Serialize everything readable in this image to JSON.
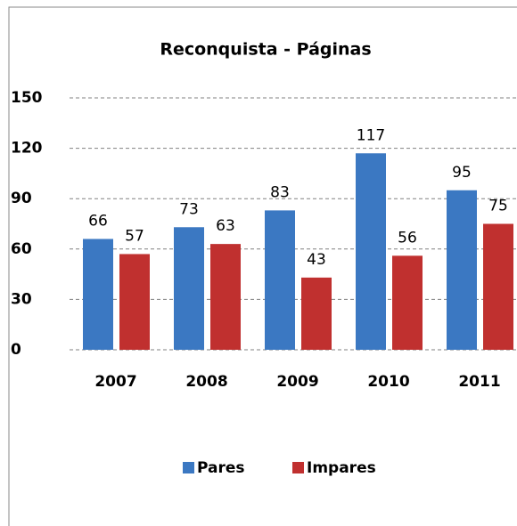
{
  "chart_data": {
    "type": "bar",
    "title": "Reconquista - Páginas",
    "categories": [
      "2007",
      "2008",
      "2009",
      "2010",
      "2011"
    ],
    "series": [
      {
        "name": "Pares",
        "color": "#3b78c2",
        "values": [
          66,
          73,
          83,
          117,
          95
        ]
      },
      {
        "name": "Impares",
        "color": "#c0302f",
        "values": [
          57,
          63,
          43,
          56,
          75
        ]
      }
    ],
    "ylim": [
      0,
      150
    ],
    "yticks": [
      0,
      30,
      60,
      90,
      120,
      150
    ],
    "grid": true,
    "legend": "bottom"
  }
}
